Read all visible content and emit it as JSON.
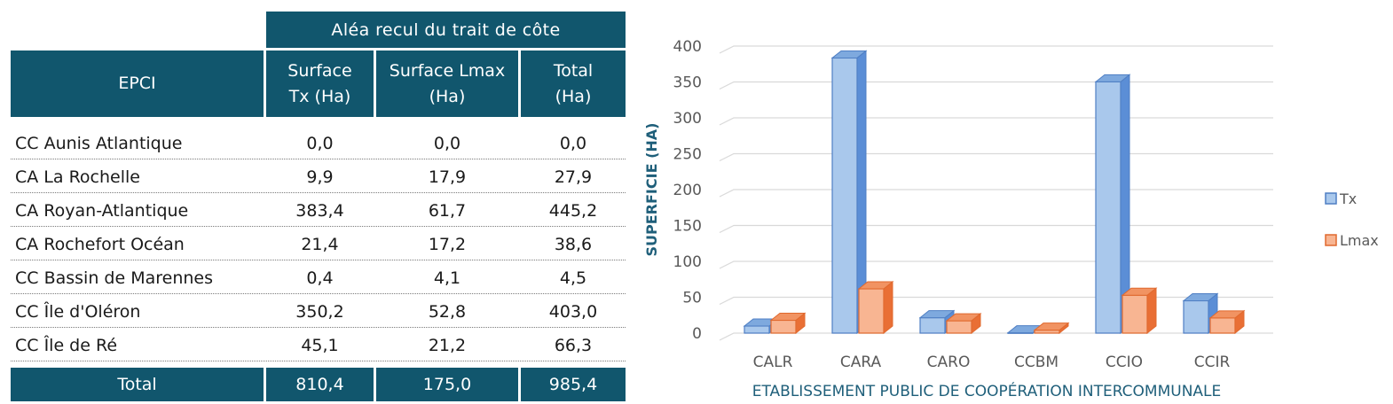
{
  "table": {
    "group_header": "Aléa recul du trait de côte",
    "col_headers": [
      "EPCI",
      "Surface\nTx (Ha)",
      "Surface Lmax\n(Ha)",
      "Total\n(Ha)"
    ],
    "rows": [
      [
        "CC Aunis Atlantique",
        "0,0",
        "0,0",
        "0,0"
      ],
      [
        "CA La Rochelle",
        "9,9",
        "17,9",
        "27,9"
      ],
      [
        "CA Royan-Atlantique",
        "383,4",
        "61,7",
        "445,2"
      ],
      [
        "CA Rochefort Océan",
        "21,4",
        "17,2",
        "38,6"
      ],
      [
        "CC Bassin de Marennes",
        "0,4",
        "4,1",
        "4,5"
      ],
      [
        "CC Île d'Oléron",
        "350,2",
        "52,8",
        "403,0"
      ],
      [
        "CC Île de Ré",
        "45,1",
        "21,2",
        "66,3"
      ]
    ],
    "total_row": [
      "Total",
      "810,4",
      "175,0",
      "985,4"
    ]
  },
  "chart_data": {
    "type": "bar",
    "categories": [
      "CALR",
      "CARA",
      "CARO",
      "CCBM",
      "CCIO",
      "CCIR"
    ],
    "series": [
      {
        "name": "Tx",
        "values": [
          9.9,
          383.4,
          21.4,
          0.4,
          350.2,
          45.1
        ]
      },
      {
        "name": "Lmax",
        "values": [
          17.9,
          61.7,
          17.2,
          4.1,
          52.8,
          21.2
        ]
      }
    ],
    "title": "",
    "xlabel": "ETABLISSEMENT PUBLIC DE COOPÉRATION INTERCOMMUNALE",
    "ylabel": "SUPERFICIE (HA)",
    "ylim": [
      0,
      400
    ],
    "yticks": [
      "0",
      "50",
      "100",
      "150",
      "200",
      "250",
      "300",
      "350",
      "400"
    ],
    "grid": true,
    "legend": "right",
    "colors": {
      "Tx_front": "#a9c8ec",
      "Tx_side": "#5b8ed6",
      "Tx_top": "#7ea9de",
      "Tx_edge": "#4f7fc4",
      "Lmax_front": "#f8b592",
      "Lmax_side": "#e96f35",
      "Lmax_top": "#f19362",
      "Lmax_edge": "#e0692e",
      "grid": "#d9d9d9",
      "axis_text": "#595959",
      "title_text": "#1f5f7a"
    }
  }
}
